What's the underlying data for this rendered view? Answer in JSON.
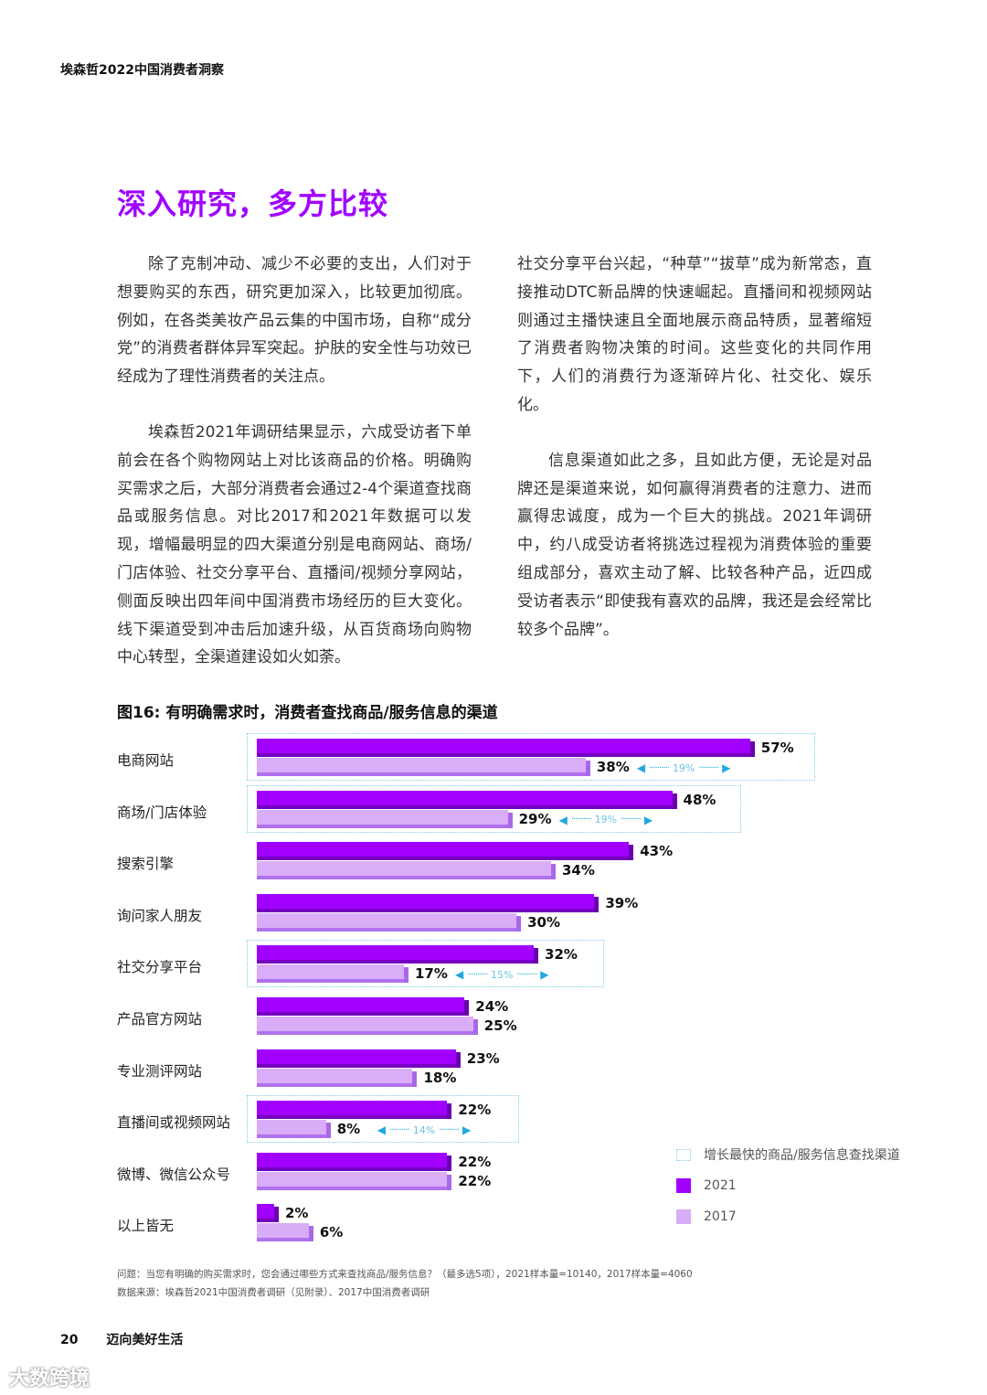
{
  "header": {
    "running_title": "埃森哲2022中国消费者洞察"
  },
  "section": {
    "title": "深入研究，多方比较"
  },
  "body": {
    "left_paragraphs": [
      "除了克制冲动、减少不必要的支出，人们对于想要购买的东西，研究更加深入，比较更加彻底。例如，在各类美妆产品云集的中国市场，自称“成分党”的消费者群体异军突起。护肤的安全性与功效已经成为了理性消费者的关注点。",
      "埃森哲2021年调研结果显示，六成受访者下单前会在各个购物网站上对比该商品的价格。明确购买需求之后，大部分消费者会通过2-4个渠道查找商品或服务信息。对比2017和2021年数据可以发现，增幅最明显的四大渠道分别是电商网站、商场/门店体验、社交分享平台、直播间/视频分享网站，侧面反映出四年间中国消费市场经历的巨大变化。线下渠道受到冲击后加速升级，从百货商场向购物中心转型，全渠道建设如火如荼。"
    ],
    "right_paragraphs": [
      "社交分享平台兴起，“种草”“拔草”成为新常态，直接推动DTC新品牌的快速崛起。直播间和视频网站则通过主播快速且全面地展示商品特质，显著缩短了消费者购物决策的时间。这些变化的共同作用下，人们的消费行为逐渐碎片化、社交化、娱乐化。",
      "信息渠道如此之多，且如此方便，无论是对品牌还是渠道来说，如何赢得消费者的注意力、进而赢得忠诚度，成为一个巨大的挑战。2021年调研中，约八成受访者将挑选过程视为消费体验的重要组成部分，喜欢主动了解、比较各种产品，近四成受访者表示“即使我有喜欢的品牌，我还是会经常比较多个品牌”。"
    ]
  },
  "chart_data": {
    "type": "bar",
    "orientation": "horizontal",
    "title": "图16: 有明确需求时，消费者查找商品/服务信息的渠道",
    "categories": [
      "电商网站",
      "商场/门店体验",
      "搜索引擎",
      "询问家人朋友",
      "社交分享平台",
      "产品官方网站",
      "专业测评网站",
      "直播间或视频网站",
      "微博、微信公众号",
      "以上皆无"
    ],
    "series": [
      {
        "name": "2021",
        "color": "#A100FF",
        "values": [
          57,
          48,
          43,
          39,
          32,
          24,
          23,
          22,
          22,
          2
        ]
      },
      {
        "name": "2017",
        "color": "#D9ADF7",
        "values": [
          38,
          29,
          34,
          30,
          17,
          25,
          18,
          8,
          22,
          6
        ]
      }
    ],
    "value_labels_2021": [
      "57%",
      "48%",
      "43%",
      "39%",
      "32%",
      "24%",
      "23%",
      "22%",
      "22%",
      "2%"
    ],
    "value_labels_2017": [
      "38%",
      "29%",
      "34%",
      "30%",
      "17%",
      "25%",
      "18%",
      "8%",
      "22%",
      "6%"
    ],
    "highlights": [
      {
        "category": "电商网站",
        "delta": "19%"
      },
      {
        "category": "商场/门店体验",
        "delta": "19%"
      },
      {
        "category": "社交分享平台",
        "delta": "15%"
      },
      {
        "category": "直播间或视频网站",
        "delta": "14%"
      }
    ],
    "legend": [
      {
        "label": "增长最快的商品/服务信息查找渠道",
        "type": "dotted-box",
        "color": "#7CCDE3"
      },
      {
        "label": "2021",
        "type": "swatch",
        "color": "#A100FF"
      },
      {
        "label": "2017",
        "type": "swatch",
        "color": "#D9ADF7"
      }
    ],
    "xlabel": "",
    "ylabel": "",
    "xlim": [
      0,
      60
    ],
    "grid": false,
    "legend_position": "bottom-right"
  },
  "notes": {
    "question": "问题：当您有明确的购买需求时，您会通过哪些方式来查找商品/服务信息？（最多选5项），2021样本量=10140，2017样本量=4060",
    "source": "数据来源：埃森哲2021中国消费者调研（见附录）、2017中国消费者调研"
  },
  "footer": {
    "page_number": "20",
    "section_name": "迈向美好生活"
  },
  "watermark": {
    "text": "大数跨境"
  }
}
